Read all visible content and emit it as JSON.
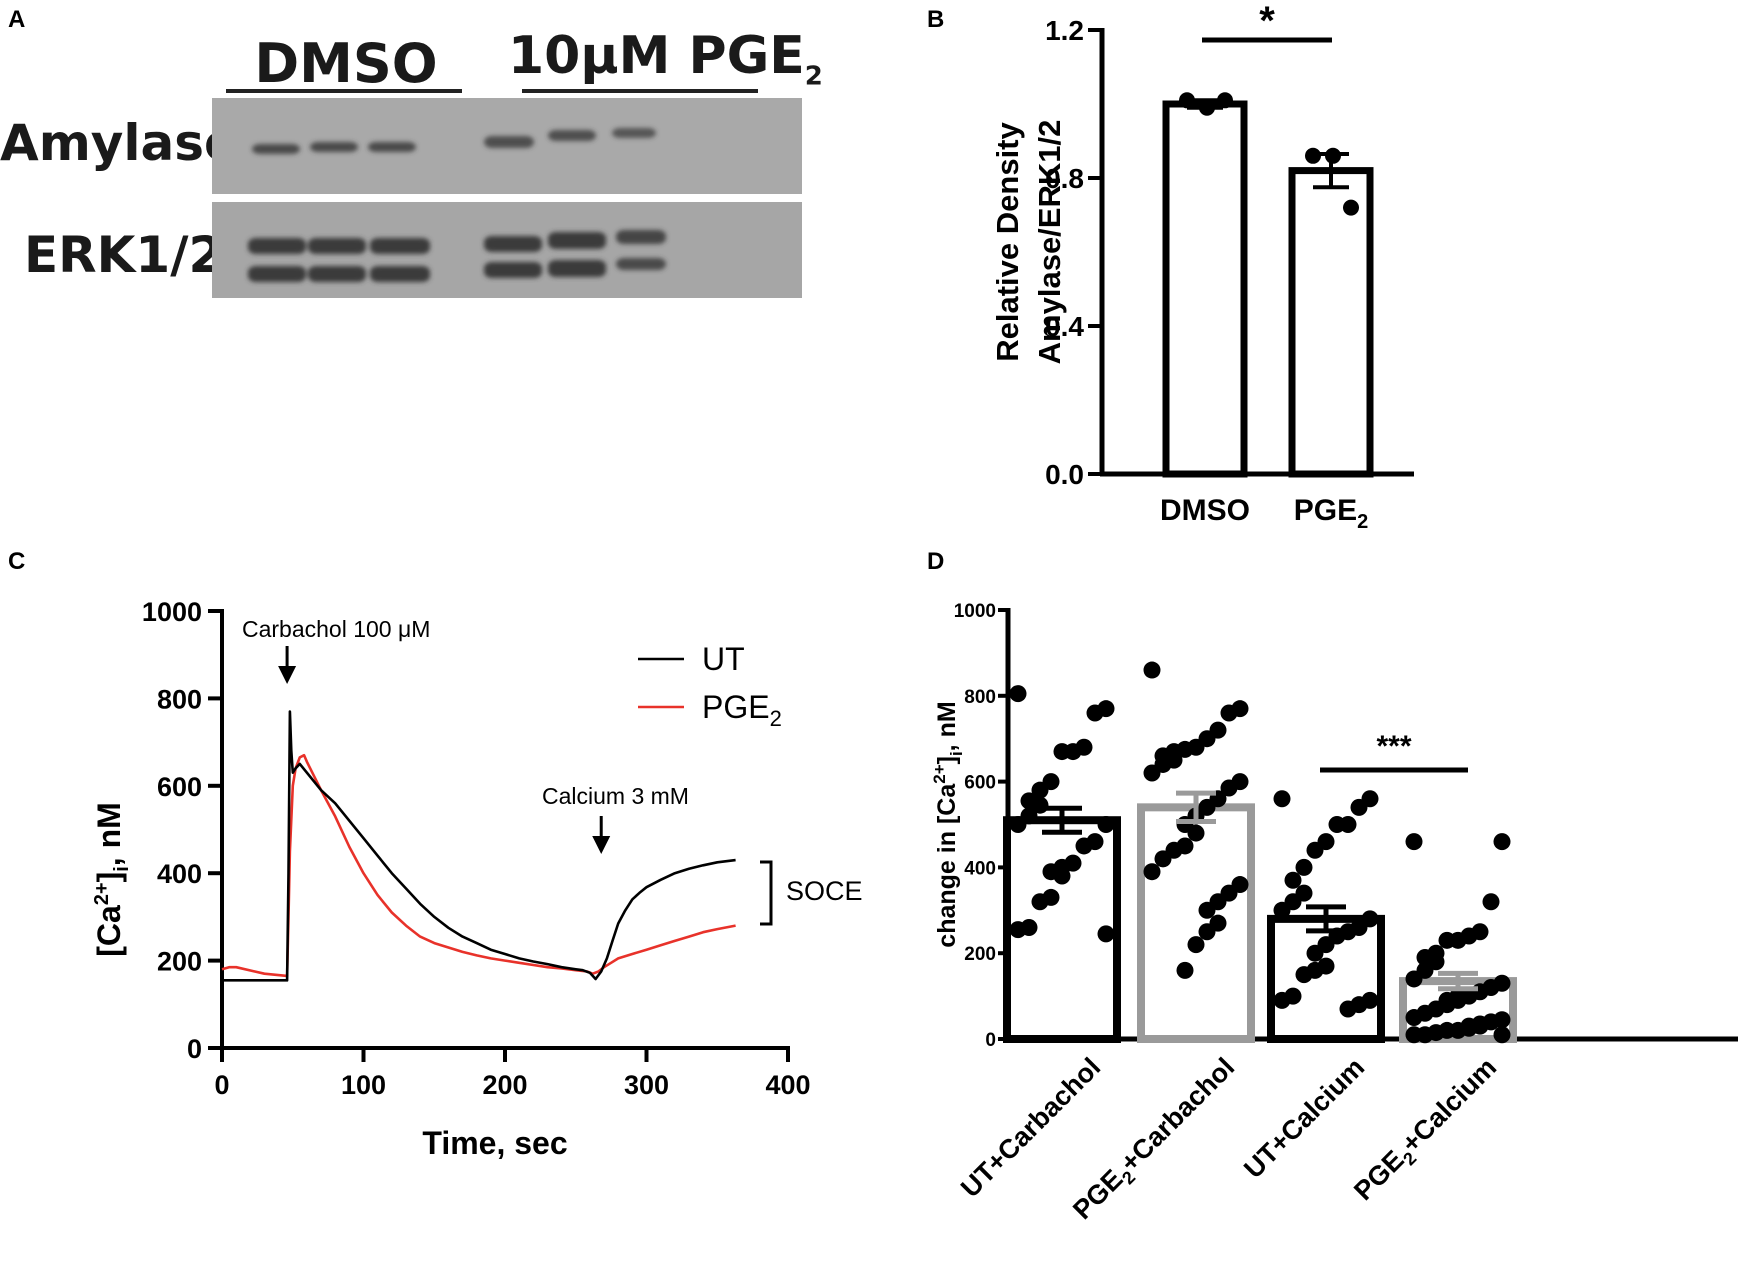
{
  "panels": {
    "a": "A",
    "b": "B",
    "c": "C",
    "d": "D"
  },
  "blot": {
    "group_dmso": "DMSO",
    "group_pge2_prefix": "10μM PGE",
    "group_pge2_sub": "2",
    "row1_label": "Amylase",
    "row2_label": "ERK1/2",
    "colors": {
      "membrane": "#a9a9a9",
      "band": "#3a3a3a"
    }
  },
  "chart_data": [
    {
      "id": "B",
      "type": "bar",
      "categories": [
        "DMSO",
        "PGE2"
      ],
      "category_labels": [
        {
          "main": "DMSO",
          "sub": ""
        },
        {
          "main": "PGE",
          "sub": "2"
        }
      ],
      "values": [
        1.0,
        0.82
      ],
      "errors": [
        0.01,
        0.045
      ],
      "points": [
        [
          1.01,
          0.99,
          1.01
        ],
        [
          0.86,
          0.86,
          0.72
        ]
      ],
      "ylabel_line1": "Relative Density",
      "ylabel_line2": "Amylase/ERK1/2",
      "yticks": [
        "0.0",
        "0.4",
        "0.8",
        "1.2"
      ],
      "ylim": [
        0,
        1.2
      ],
      "significance": "*"
    },
    {
      "id": "C",
      "type": "line",
      "xlabel": "Time, sec",
      "ylabel_main": "[Ca",
      "ylabel_sup": "2+",
      "ylabel_end": "]",
      "ylabel_sub": "i",
      "ylabel_unit": ", nM",
      "xlim": [
        0,
        400
      ],
      "ylim": [
        0,
        1000
      ],
      "xticks": [
        "0",
        "100",
        "200",
        "300",
        "400"
      ],
      "yticks": [
        "0",
        "200",
        "400",
        "600",
        "800",
        "1000"
      ],
      "series": [
        {
          "name": "UT",
          "color": "#000000",
          "x": [
            0,
            30,
            46,
            47,
            48,
            49,
            50,
            52,
            55,
            60,
            70,
            80,
            90,
            100,
            110,
            120,
            130,
            140,
            150,
            160,
            170,
            180,
            190,
            200,
            210,
            220,
            230,
            240,
            250,
            255,
            260,
            264,
            268,
            272,
            276,
            280,
            285,
            290,
            295,
            300,
            310,
            320,
            330,
            340,
            350,
            363
          ],
          "y": [
            155,
            155,
            155,
            400,
            770,
            680,
            630,
            640,
            650,
            630,
            590,
            560,
            520,
            480,
            440,
            400,
            365,
            330,
            300,
            275,
            255,
            240,
            225,
            215,
            205,
            198,
            192,
            185,
            180,
            178,
            172,
            158,
            175,
            205,
            245,
            285,
            315,
            340,
            355,
            368,
            385,
            400,
            410,
            418,
            425,
            430
          ]
        },
        {
          "name": "PGE2",
          "name_main": "PGE",
          "name_sub": "2",
          "color": "#e8322a",
          "x": [
            0,
            5,
            10,
            30,
            46,
            47,
            48,
            50,
            52,
            55,
            58,
            60,
            70,
            80,
            90,
            100,
            110,
            120,
            130,
            140,
            150,
            160,
            170,
            180,
            190,
            200,
            210,
            220,
            230,
            240,
            250,
            258,
            262,
            266,
            270,
            275,
            280,
            290,
            300,
            310,
            320,
            330,
            340,
            350,
            363
          ],
          "y": [
            180,
            185,
            185,
            170,
            165,
            300,
            450,
            600,
            640,
            665,
            670,
            655,
            590,
            530,
            460,
            400,
            350,
            310,
            280,
            255,
            240,
            230,
            220,
            212,
            205,
            200,
            195,
            190,
            185,
            182,
            178,
            175,
            170,
            175,
            185,
            195,
            205,
            215,
            225,
            235,
            245,
            255,
            265,
            272,
            280
          ]
        }
      ],
      "annotations": {
        "carbachol": "Carbachol 100 μM",
        "calcium": "Calcium 3 mM",
        "soce": "SOCE"
      }
    },
    {
      "id": "D",
      "type": "bar",
      "ylabel_main": "change in [Ca",
      "ylabel_sup": "2+",
      "ylabel_end": "]",
      "ylabel_sub": "i",
      "ylabel_unit": ", nM",
      "ylim": [
        0,
        1000
      ],
      "yticks": [
        "0",
        "200",
        "400",
        "600",
        "800",
        "1000"
      ],
      "categories": [
        "UT+Carbachol",
        "PGE2+Carbachol",
        "UT+Calcium",
        "PGE2+Calcium"
      ],
      "category_labels": [
        {
          "pre": "UT+Carbachol",
          "sub": "",
          "post": ""
        },
        {
          "pre": "PGE",
          "sub": "2",
          "post": "+Carbachol"
        },
        {
          "pre": "UT+Calcium",
          "sub": "",
          "post": ""
        },
        {
          "pre": "PGE",
          "sub": "2",
          "post": "+Calcium"
        }
      ],
      "values": [
        510,
        540,
        280,
        135
      ],
      "errors": [
        28,
        33,
        28,
        18
      ],
      "bar_colors": [
        "#000000",
        "#9a9a9a",
        "#000000",
        "#9a9a9a"
      ],
      "points": [
        [
          805,
          770,
          760,
          680,
          670,
          670,
          600,
          580,
          555,
          545,
          520,
          500,
          500,
          460,
          450,
          410,
          400,
          390,
          380,
          330,
          320,
          260,
          255,
          245
        ],
        [
          860,
          770,
          760,
          720,
          700,
          680,
          675,
          670,
          660,
          650,
          640,
          620,
          600,
          585,
          560,
          540,
          520,
          500,
          480,
          450,
          440,
          420,
          390,
          360,
          340,
          320,
          300,
          270,
          250,
          220,
          160
        ],
        [
          560,
          560,
          540,
          500,
          500,
          460,
          440,
          400,
          370,
          340,
          320,
          300,
          280,
          260,
          250,
          240,
          220,
          200,
          170,
          160,
          150,
          100,
          90,
          90,
          80,
          70
        ],
        [
          460,
          460,
          320,
          250,
          240,
          230,
          230,
          200,
          190,
          180,
          160,
          140,
          130,
          120,
          110,
          100,
          100,
          90,
          90,
          80,
          70,
          60,
          50,
          45,
          40,
          35,
          30,
          30,
          25,
          20,
          20,
          15,
          10,
          10,
          10
        ]
      ],
      "significance": "***"
    }
  ]
}
